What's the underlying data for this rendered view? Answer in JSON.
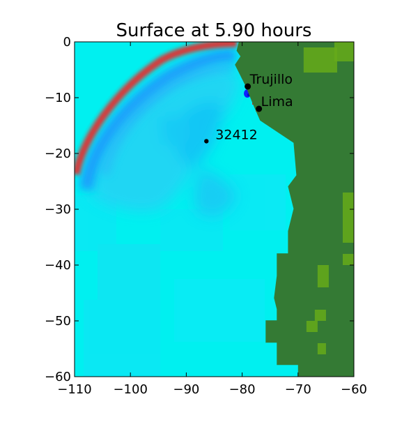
{
  "figure": {
    "title": "Surface at 5.90 hours"
  },
  "chart_data": {
    "type": "heatmap",
    "title": "Surface at 5.90 hours",
    "xlabel": "",
    "ylabel": "",
    "xlim": [
      -110,
      -60
    ],
    "ylim": [
      -60,
      0
    ],
    "x_ticks": [
      -110,
      -100,
      -90,
      -80,
      -70,
      -60
    ],
    "y_ticks": [
      0,
      -10,
      -20,
      -30,
      -40,
      -50,
      -60
    ],
    "x_tick_labels": [
      "−110",
      "−100",
      "−90",
      "−80",
      "−70",
      "−60"
    ],
    "y_tick_labels": [
      "0",
      "−10",
      "−20",
      "−30",
      "−40",
      "−50",
      "−60"
    ],
    "locations": [
      {
        "name": "Trujillo",
        "lon": -79.0,
        "lat": -8.0
      },
      {
        "name": "Lima",
        "lon": -77.0,
        "lat": -12.0
      },
      {
        "name": "32412",
        "lon": -86.4,
        "lat": -17.8
      }
    ],
    "colors": {
      "ocean": "#00f0f0",
      "land": "#347a34",
      "highland": "#66aa1a",
      "wave_crest": "#e03030",
      "wave_trough": "#1ea8ff",
      "marker": "#000000"
    },
    "land_outline_lonlat": [
      [
        -80.6,
        0
      ],
      [
        -60,
        0
      ],
      [
        -60,
        -60
      ],
      [
        -70,
        -60
      ],
      [
        -70,
        -57.9
      ],
      [
        -73.8,
        -57.9
      ],
      [
        -73.8,
        -53.9
      ],
      [
        -75.8,
        -53.9
      ],
      [
        -75.8,
        -49.9
      ],
      [
        -73.8,
        -49.9
      ],
      [
        -73.8,
        -47.9
      ],
      [
        -74.3,
        -45.9
      ],
      [
        -73.8,
        -41.9
      ],
      [
        -73.8,
        -37.9
      ],
      [
        -71.8,
        -37.9
      ],
      [
        -71.8,
        -33.9
      ],
      [
        -70.8,
        -29.9
      ],
      [
        -71.8,
        -25.9
      ],
      [
        -70.3,
        -23.9
      ],
      [
        -70.8,
        -18.1
      ],
      [
        -73.8,
        -16.1
      ],
      [
        -76.8,
        -14.1
      ],
      [
        -78.1,
        -11.1
      ],
      [
        -79.3,
        -8.1
      ],
      [
        -80.3,
        -6.1
      ],
      [
        -81.3,
        -4.1
      ],
      [
        -80.3,
        -2.6
      ],
      [
        -81.0,
        -1.6
      ],
      [
        -80.6,
        0
      ]
    ],
    "highland_patches": [
      {
        "lon": [
          -69,
          -63
        ],
        "lat": [
          -1,
          -5.5
        ]
      },
      {
        "lon": [
          -63.5,
          -60
        ],
        "lat": [
          0,
          -3.5
        ]
      },
      {
        "lon": [
          -62,
          -60
        ],
        "lat": [
          -27,
          -36
        ]
      },
      {
        "lon": [
          -62,
          -60
        ],
        "lat": [
          -38,
          -40
        ]
      },
      {
        "lon": [
          -66.5,
          -64.5
        ],
        "lat": [
          -40,
          -44
        ]
      },
      {
        "lon": [
          -67,
          -65
        ],
        "lat": [
          -48,
          -50
        ]
      },
      {
        "lon": [
          -68.5,
          -66.5
        ],
        "lat": [
          -50,
          -52
        ]
      },
      {
        "lon": [
          -66.5,
          -65
        ],
        "lat": [
          -54,
          -56
        ]
      }
    ]
  }
}
